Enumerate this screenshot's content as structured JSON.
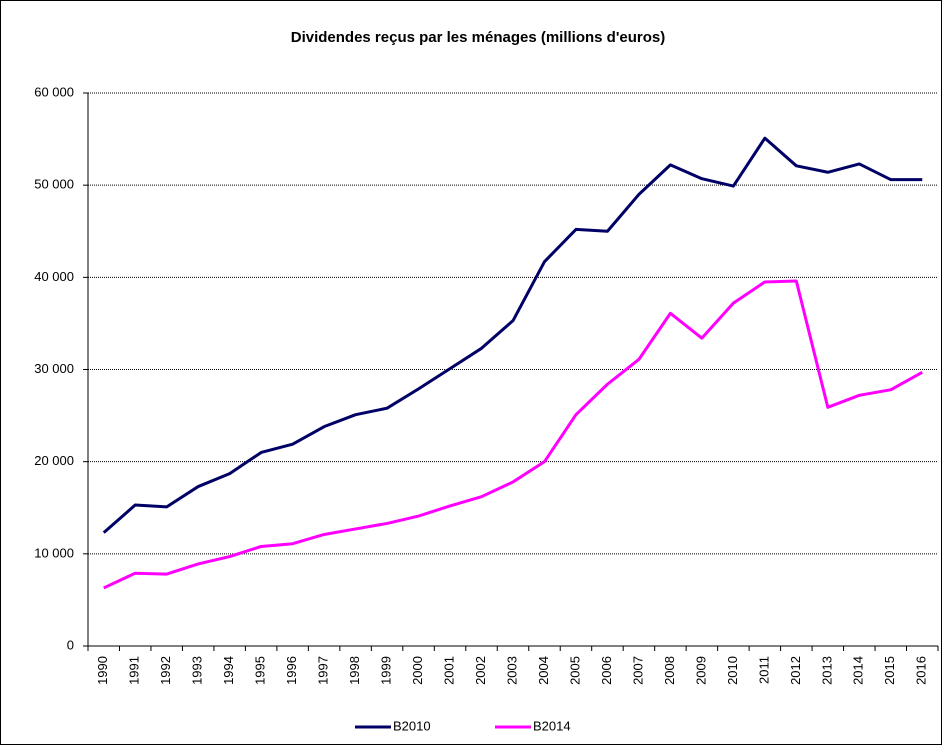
{
  "chart_data": {
    "type": "line",
    "title": "Dividendes reçus par les ménages (millions d'euros)",
    "categories": [
      "1990",
      "1991",
      "1992",
      "1993",
      "1994",
      "1995",
      "1996",
      "1997",
      "1998",
      "1999",
      "2000",
      "2001",
      "2002",
      "2003",
      "2004",
      "2005",
      "2006",
      "2007",
      "2008",
      "2009",
      "2010",
      "2011",
      "2012",
      "2013",
      "2014",
      "2015",
      "2016"
    ],
    "series": [
      {
        "name": "B2010",
        "color": "#000066",
        "values": [
          12300,
          15300,
          15100,
          17300,
          18700,
          21000,
          21900,
          23800,
          25100,
          25800,
          27900,
          30100,
          32300,
          35300,
          41700,
          45200,
          45000,
          49000,
          52200,
          50700,
          49900,
          55100,
          52100,
          51400,
          52300,
          50600,
          50600
        ]
      },
      {
        "name": "B2014",
        "color": "#ff00ff",
        "values": [
          6300,
          7900,
          7800,
          8900,
          9700,
          10800,
          11100,
          12100,
          12700,
          13300,
          14100,
          15200,
          16200,
          17800,
          20000,
          25100,
          28400,
          31100,
          36100,
          33400,
          37200,
          39500,
          39600,
          25900,
          27200,
          27800,
          29700
        ]
      }
    ],
    "ylim": [
      0,
      60000
    ],
    "yticks": [
      0,
      {
        "value": 10000,
        "label": "10 000"
      },
      {
        "value": 20000,
        "label": "20 000"
      },
      {
        "value": 30000,
        "label": "30 000"
      },
      {
        "value": 40000,
        "label": "40 000"
      },
      {
        "value": 50000,
        "label": "50 000"
      },
      {
        "value": 60000,
        "label": "60 000"
      }
    ],
    "grid": true,
    "legend": "bottom"
  }
}
